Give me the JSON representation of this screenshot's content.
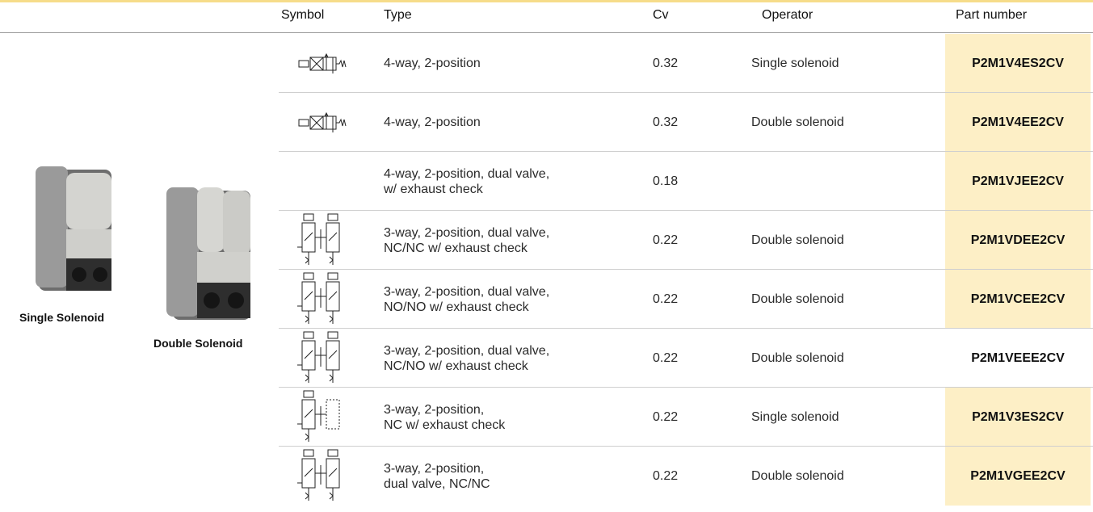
{
  "table": {
    "header": [
      "Symbol",
      "Type",
      "Cv",
      "Operator",
      "Part number"
    ],
    "rows": [
      {
        "type": "4-way, 2-position",
        "cv": 0.32,
        "operator": "Single solenoid",
        "part_number": "P2M1V4ES2CV",
        "highlight": true
      },
      {
        "type": "4-way, 2-position",
        "cv": 0.32,
        "operator": "Double solenoid",
        "part_number": "P2M1V4EE2CV",
        "highlight": true
      },
      {
        "type": "4-way, 2-position, dual valve,\nw/ exhaust check",
        "cv": 0.18,
        "part_number": "P2M1VJEE2CV",
        "highlight": true
      },
      {
        "type": "3-way, 2-position, dual valve,\nNC/NC w/ exhaust check",
        "cv": 0.22,
        "operator": "Double solenoid",
        "part_number": "P2M1VDEE2CV",
        "highlight": true
      },
      {
        "type": "3-way, 2-position, dual valve,\nNO/NO w/ exhaust check",
        "cv": 0.22,
        "operator": "Double solenoid",
        "part_number": "P2M1VCEE2CV",
        "highlight": true
      },
      {
        "type": "3-way, 2-position, dual valve,\nNC/NO w/ exhaust check",
        "cv": 0.22,
        "operator": "Double solenoid",
        "part_number": "P2M1VEEE2CV",
        "highlight": false
      },
      {
        "type": "3-way, 2-position,\nNC w/ exhaust check",
        "cv": 0.22,
        "operator": "Single solenoid",
        "part_number": "P2M1V3ES2CV",
        "highlight": true
      },
      {
        "type": "3-way, 2-position,\ndual valve, NC/NC",
        "cv": 0.22,
        "operator": "Double solenoid",
        "part_number": "P2M1VGEE2CV",
        "highlight": true
      }
    ]
  },
  "images": [
    {
      "caption": "Single Solenoid"
    },
    {
      "caption": "Double Solenoid"
    }
  ]
}
